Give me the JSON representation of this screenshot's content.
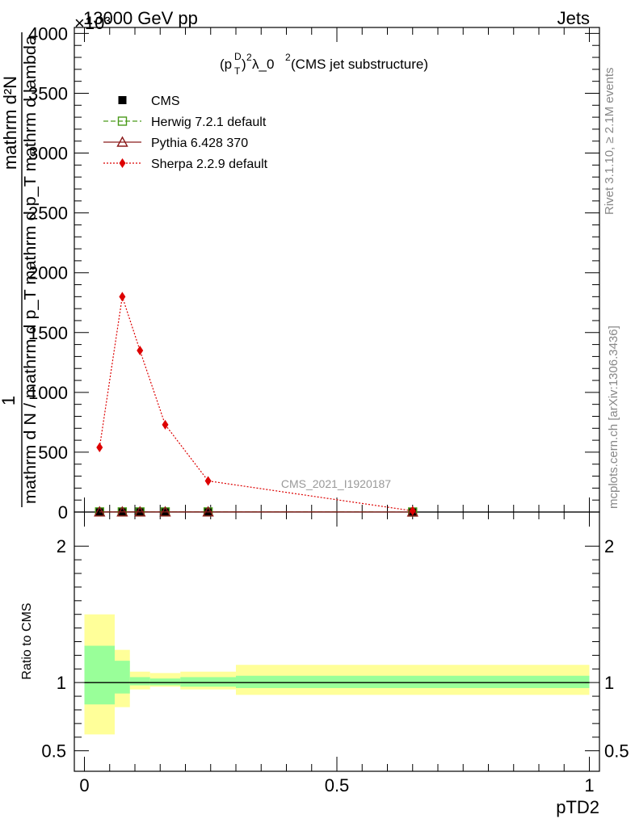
{
  "header": {
    "left": "13000 GeV pp",
    "right": "Jets",
    "exponent": "×10³",
    "watermark": "CMS_2021_I1920187"
  },
  "side_labels": {
    "rivet": "Rivet 3.1.10, ≥ 2.1M events",
    "mcplots": "mcplots.cern.ch [arXiv:1306.3436]"
  },
  "ylabel": {
    "main_prefix": "1",
    "main_numerator": "mathrm d²N",
    "main_denominator": "mathrm d N / mathrm d p_T mathrm d p_T mathrm d lambda",
    "ratio": "Ratio to CMS"
  },
  "chart_data": [
    {
      "type": "line",
      "title": "(p_T^D)^2 λ_0^2 (CMS jet substructure)",
      "title_parts": {
        "p": "(p",
        "T": "T",
        "D": "D",
        "close": ")",
        "sq": "2",
        "lambda": " λ_0",
        "rest": " (CMS jet substructure)"
      },
      "xlabel": "pTD2",
      "ylabel": "",
      "xlim": [
        -0.02,
        1.02
      ],
      "ylim": [
        0,
        4.05
      ],
      "y_multiplier": 1000,
      "xticks": [
        0,
        0.5,
        1
      ],
      "xtick_labels": [
        "0",
        "0.5",
        "1"
      ],
      "yticks": [
        0,
        0.5,
        1,
        1.5,
        2,
        2.5,
        3,
        3.5,
        4
      ],
      "ytick_labels": [
        "0",
        "500",
        "1000",
        "1500",
        "2000",
        "2500",
        "3000",
        "3500",
        "4000"
      ],
      "legend_position": "top-left",
      "series": [
        {
          "name": "CMS",
          "color": "#000000",
          "marker": "square",
          "x": [
            0.03,
            0.075,
            0.11,
            0.16,
            0.245,
            0.65
          ],
          "y": [
            0.001,
            0.001,
            0.001,
            0.001,
            0.001,
            0.0005
          ]
        },
        {
          "name": "Herwig 7.2.1 default",
          "color": "#4a9a1a",
          "marker": "open-square",
          "dash": "dashed",
          "x": [
            0.03,
            0.075,
            0.11,
            0.16,
            0.245,
            0.65
          ],
          "y": [
            0.001,
            0.001,
            0.001,
            0.001,
            0.001,
            0.0005
          ]
        },
        {
          "name": "Pythia 6.428 370",
          "color": "#8b1a1a",
          "marker": "open-triangle",
          "dash": "solid",
          "x": [
            0.03,
            0.075,
            0.11,
            0.16,
            0.245,
            0.65
          ],
          "y": [
            0.001,
            0.001,
            0.001,
            0.001,
            0.001,
            0.0005
          ]
        },
        {
          "name": "Sherpa 2.2.9 default",
          "color": "#dd0000",
          "marker": "diamond",
          "dash": "dotted",
          "x": [
            0.03,
            0.075,
            0.11,
            0.16,
            0.245,
            0.65
          ],
          "y": [
            0.54,
            1.8,
            1.35,
            0.73,
            0.26,
            0.01
          ]
        }
      ]
    },
    {
      "type": "area",
      "ylabel": "Ratio to CMS",
      "xlabel": "pTD2",
      "xlim": [
        -0.02,
        1.02
      ],
      "ylim": [
        0.35,
        2.25
      ],
      "yticks": [
        0.5,
        1,
        2
      ],
      "ytick_labels": [
        "0.5",
        "1",
        "2"
      ],
      "reference": 1,
      "bins": [
        {
          "x0": 0.0,
          "x1": 0.06,
          "stat": [
            0.84,
            1.27
          ],
          "total": [
            0.62,
            1.5
          ]
        },
        {
          "x0": 0.06,
          "x1": 0.09,
          "stat": [
            0.92,
            1.16
          ],
          "total": [
            0.82,
            1.24
          ]
        },
        {
          "x0": 0.09,
          "x1": 0.13,
          "stat": [
            0.98,
            1.04
          ],
          "total": [
            0.95,
            1.08
          ]
        },
        {
          "x0": 0.13,
          "x1": 0.19,
          "stat": [
            0.98,
            1.03
          ],
          "total": [
            0.97,
            1.07
          ]
        },
        {
          "x0": 0.19,
          "x1": 0.3,
          "stat": [
            0.97,
            1.04
          ],
          "total": [
            0.95,
            1.08
          ]
        },
        {
          "x0": 0.3,
          "x1": 1.0,
          "stat": [
            0.96,
            1.05
          ],
          "total": [
            0.91,
            1.13
          ]
        }
      ],
      "band_colors": {
        "stat": "#99ff99",
        "total": "#ffff99"
      }
    }
  ]
}
